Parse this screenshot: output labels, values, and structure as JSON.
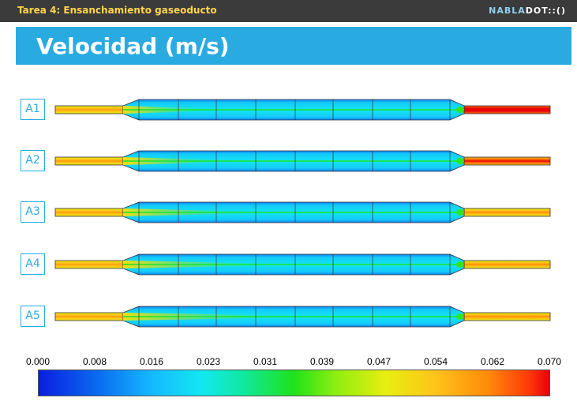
{
  "header": {
    "subtitle": "Tarea 4: Ensanchamiento gaseoducto",
    "brand_nabla": "NABLA",
    "brand_rest": "DOT::()"
  },
  "slide": {
    "title": "Velocidad (m/s)"
  },
  "cases": [
    {
      "label": "A1",
      "inlet_velocity": 0.05,
      "outlet_velocity": 0.066
    },
    {
      "label": "A2",
      "inlet_velocity": 0.05,
      "outlet_velocity": 0.058
    },
    {
      "label": "A3",
      "inlet_velocity": 0.05,
      "outlet_velocity": 0.05
    },
    {
      "label": "A4",
      "inlet_velocity": 0.05,
      "outlet_velocity": 0.05
    },
    {
      "label": "A5",
      "inlet_velocity": 0.05,
      "outlet_velocity": 0.05
    }
  ],
  "colorbar": {
    "min": 0.0,
    "max": 0.07,
    "tick_labels": [
      "0.000",
      "0.008",
      "0.016",
      "0.023",
      "0.031",
      "0.039",
      "0.047",
      "0.054",
      "0.062",
      "0.070"
    ],
    "colors": [
      "#0a1ee0",
      "#15b8ff",
      "#12e8f0",
      "#1ee21a",
      "#e8ee10",
      "#ff8a0a",
      "#e8000a"
    ]
  }
}
